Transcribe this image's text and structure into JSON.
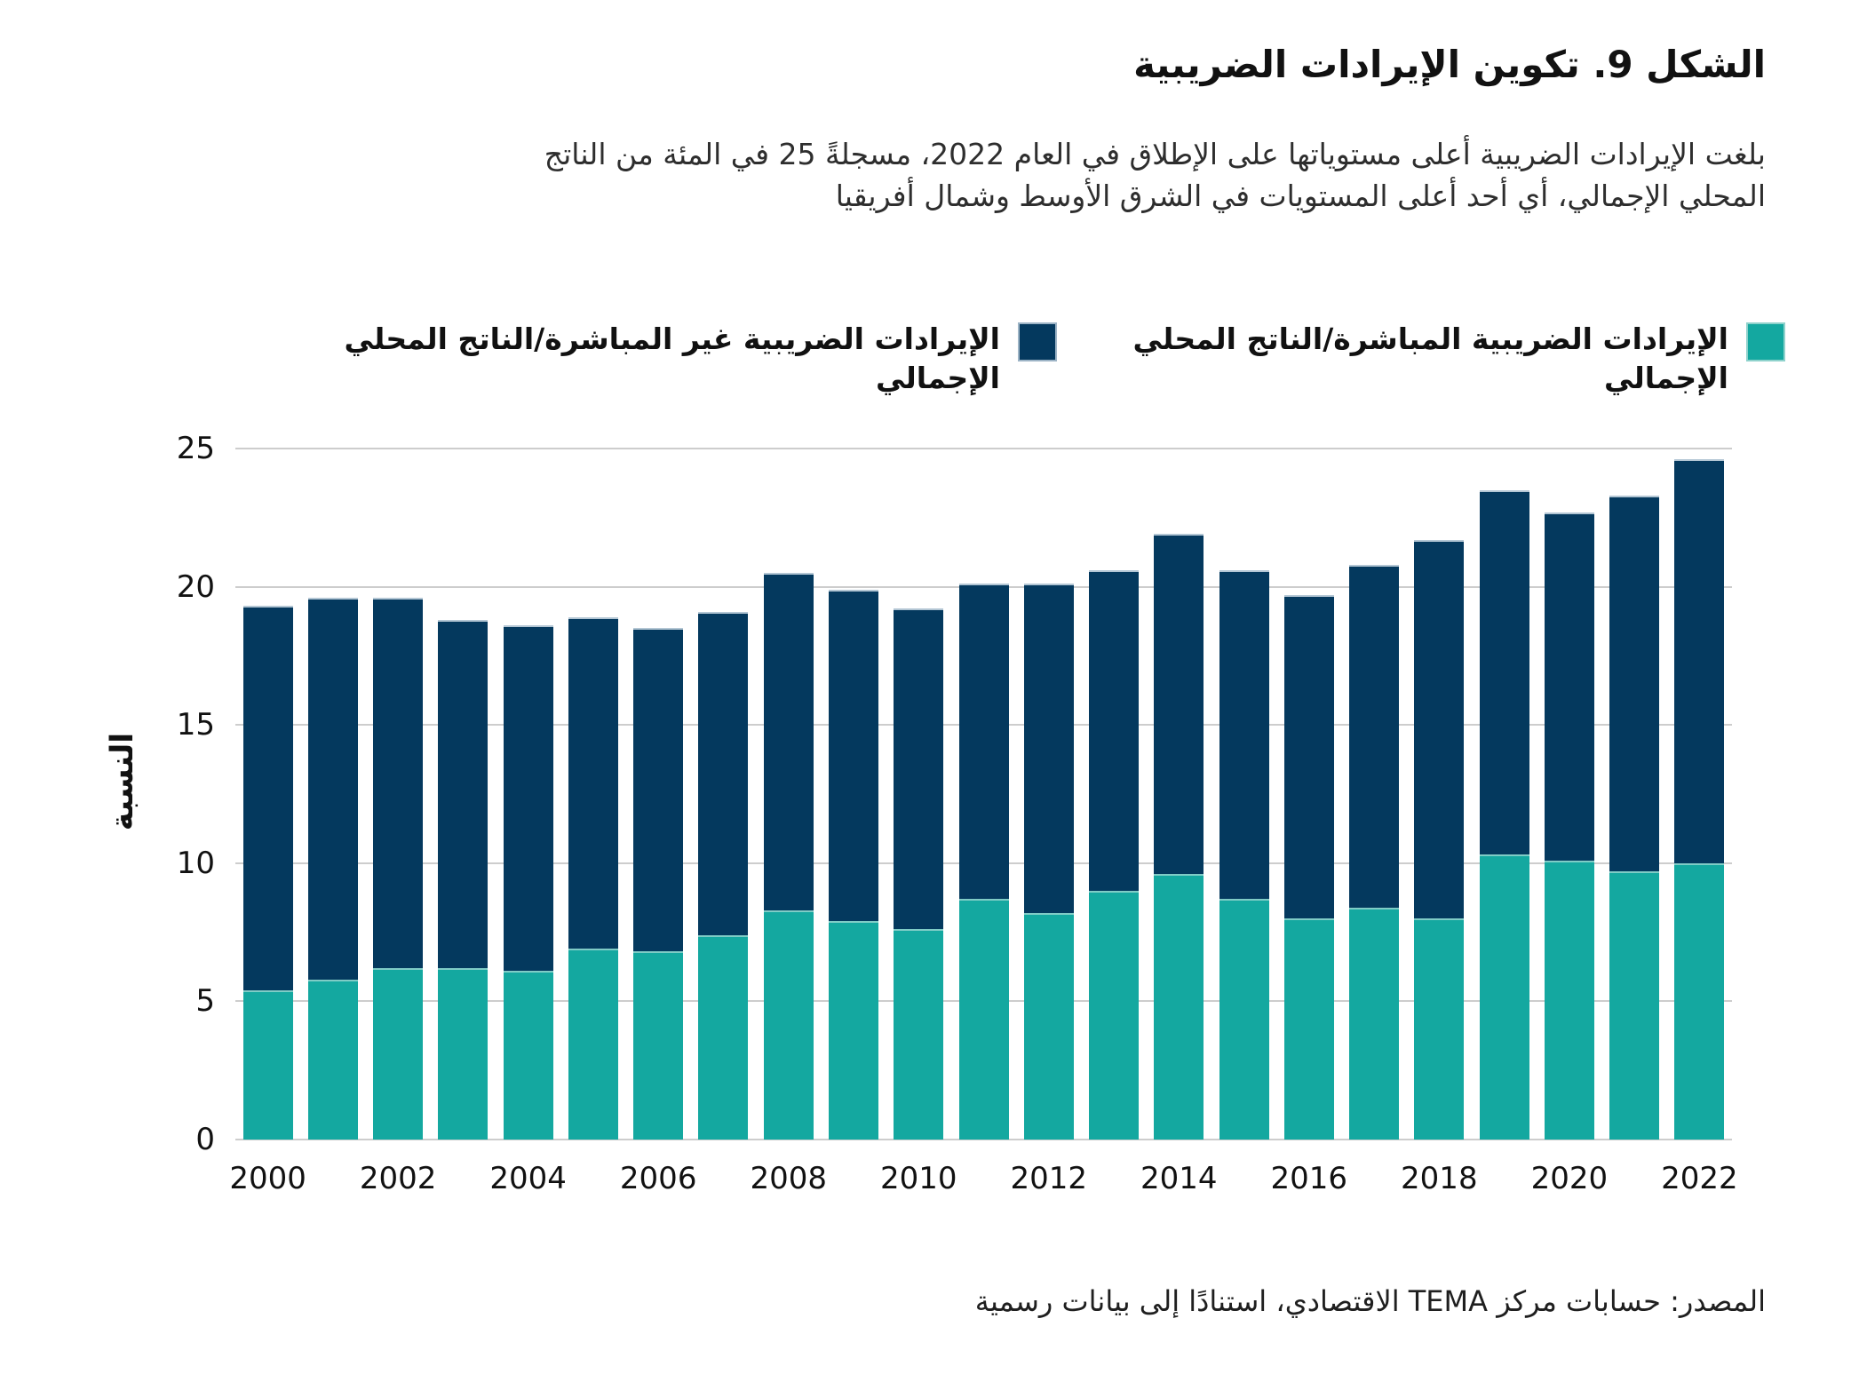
{
  "title": "الشكل 9. تكوين الإيرادات الضريبية",
  "subtitle_lines": [
    "بلغت الإيرادات الضريبية أعلى مستوياتها على الإطلاق في العام 2022، مسجلةً 25 في المئة من الناتج",
    "المحلي الإجمالي، أي أحد أعلى المستويات في الشرق الأوسط وشمال أفريقيا"
  ],
  "source": "المصدر: حسابات مركز TEMA الاقتصادي، استنادًا إلى بيانات رسمية",
  "colors": {
    "direct": "#14a8a0",
    "indirect": "#04395e",
    "gridline": "#cdcdcd",
    "text": "#111111"
  },
  "chart_data": {
    "type": "bar",
    "stacked": true,
    "title": "الشكل 9. تكوين الإيرادات الضريبية",
    "xlabel": "",
    "ylabel": "النسبة",
    "ylim": [
      0,
      25
    ],
    "yticks": [
      0,
      5,
      10,
      15,
      20,
      25
    ],
    "xticks": [
      "2000",
      "2002",
      "2004",
      "2006",
      "2008",
      "2010",
      "2012",
      "2014",
      "2016",
      "2018",
      "2020",
      "2022"
    ],
    "grid": true,
    "legend_position": "top",
    "categories": [
      "2000",
      "2001",
      "2002",
      "2003",
      "2004",
      "2005",
      "2006",
      "2007",
      "2008",
      "2009",
      "2010",
      "2011",
      "2012",
      "2013",
      "2014",
      "2015",
      "2016",
      "2017",
      "2018",
      "2019",
      "2020",
      "2021",
      "2022"
    ],
    "series": [
      {
        "name": "الإيرادات الضريبية المباشرة/الناتج المحلي الإجمالي",
        "color": "#14a8a0",
        "values": [
          5.4,
          5.8,
          6.2,
          6.2,
          6.1,
          6.9,
          6.8,
          7.4,
          8.3,
          7.9,
          7.6,
          8.7,
          8.2,
          9.0,
          9.6,
          8.7,
          8.0,
          8.4,
          8.0,
          10.3,
          10.1,
          9.7,
          10.0
        ]
      },
      {
        "name": "الإيرادات الضريبية غير المباشرة/الناتج المحلي الإجمالي",
        "color": "#04395e",
        "values": [
          13.9,
          13.8,
          13.4,
          12.6,
          12.5,
          12.0,
          11.7,
          11.7,
          12.2,
          12.0,
          11.6,
          11.4,
          11.9,
          11.6,
          12.3,
          11.9,
          11.7,
          12.4,
          13.7,
          13.2,
          12.6,
          13.6,
          14.6
        ]
      }
    ],
    "totals": [
      19.3,
      19.6,
      19.6,
      18.8,
      18.6,
      18.9,
      18.5,
      19.1,
      20.5,
      19.9,
      19.2,
      20.1,
      20.1,
      20.6,
      21.9,
      20.6,
      19.7,
      20.8,
      21.7,
      23.5,
      22.7,
      23.3,
      24.6
    ]
  }
}
